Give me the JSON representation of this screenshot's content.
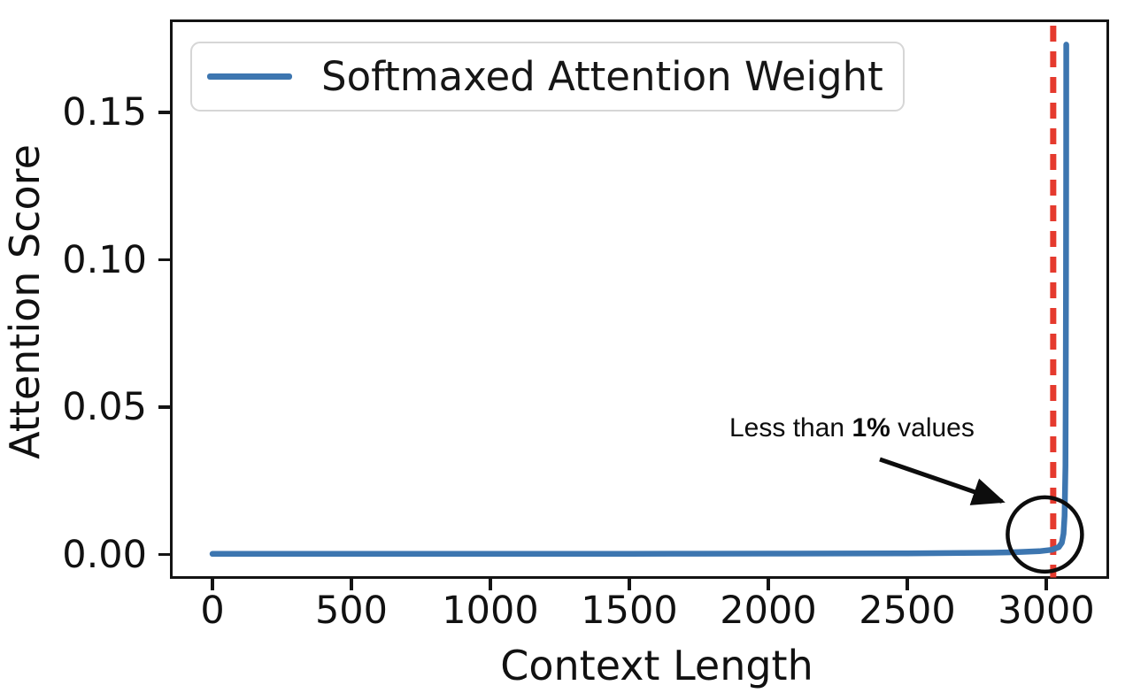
{
  "figure": {
    "legend_label": "Softmaxed Attention Weight",
    "xlabel": "Context Length",
    "ylabel": "Attention Score",
    "annotation": {
      "prefix": "Less than ",
      "bold": "1%",
      "suffix": " values"
    }
  },
  "chart_data": {
    "type": "line",
    "title": "",
    "xlabel": "Context Length",
    "ylabel": "Attention Score",
    "legend_position": "upper left",
    "grid": false,
    "xlim": [
      -153,
      3226
    ],
    "ylim": [
      -0.0083,
      0.182
    ],
    "x_ticks": [
      0,
      500,
      1000,
      1500,
      2000,
      2500,
      3000
    ],
    "x_tick_labels": [
      "0",
      "500",
      "1000",
      "1500",
      "2000",
      "2500",
      "3000"
    ],
    "y_ticks": [
      0.0,
      0.05,
      0.1,
      0.15
    ],
    "y_tick_labels": [
      "0.00",
      "0.05",
      "0.10",
      "0.15"
    ],
    "series": [
      {
        "name": "Softmaxed Attention Weight",
        "color": "#3d76b0",
        "points": [
          [
            0,
            0.0002
          ],
          [
            250,
            0.0002
          ],
          [
            500,
            0.00021
          ],
          [
            750,
            0.00021
          ],
          [
            1000,
            0.00022
          ],
          [
            1250,
            0.00023
          ],
          [
            1500,
            0.00025
          ],
          [
            1750,
            0.00027
          ],
          [
            2000,
            0.0003
          ],
          [
            2250,
            0.00034
          ],
          [
            2500,
            0.0004
          ],
          [
            2650,
            0.00048
          ],
          [
            2800,
            0.0006
          ],
          [
            2900,
            0.0008
          ],
          [
            2975,
            0.0011
          ],
          [
            3020,
            0.0016
          ],
          [
            3045,
            0.0025
          ],
          [
            3056,
            0.004
          ],
          [
            3062,
            0.007
          ],
          [
            3066,
            0.013
          ],
          [
            3069,
            0.03
          ],
          [
            3070,
            0.055
          ],
          [
            3071,
            0.09
          ],
          [
            3071.5,
            0.13
          ],
          [
            3072,
            0.173
          ]
        ]
      }
    ],
    "vline": {
      "x": 3025,
      "color": "#e53a2e",
      "style": "dashed"
    },
    "annotation": {
      "text": "Less than 1% values",
      "circle_center": {
        "x": 2995,
        "y": 0.0068
      }
    }
  }
}
